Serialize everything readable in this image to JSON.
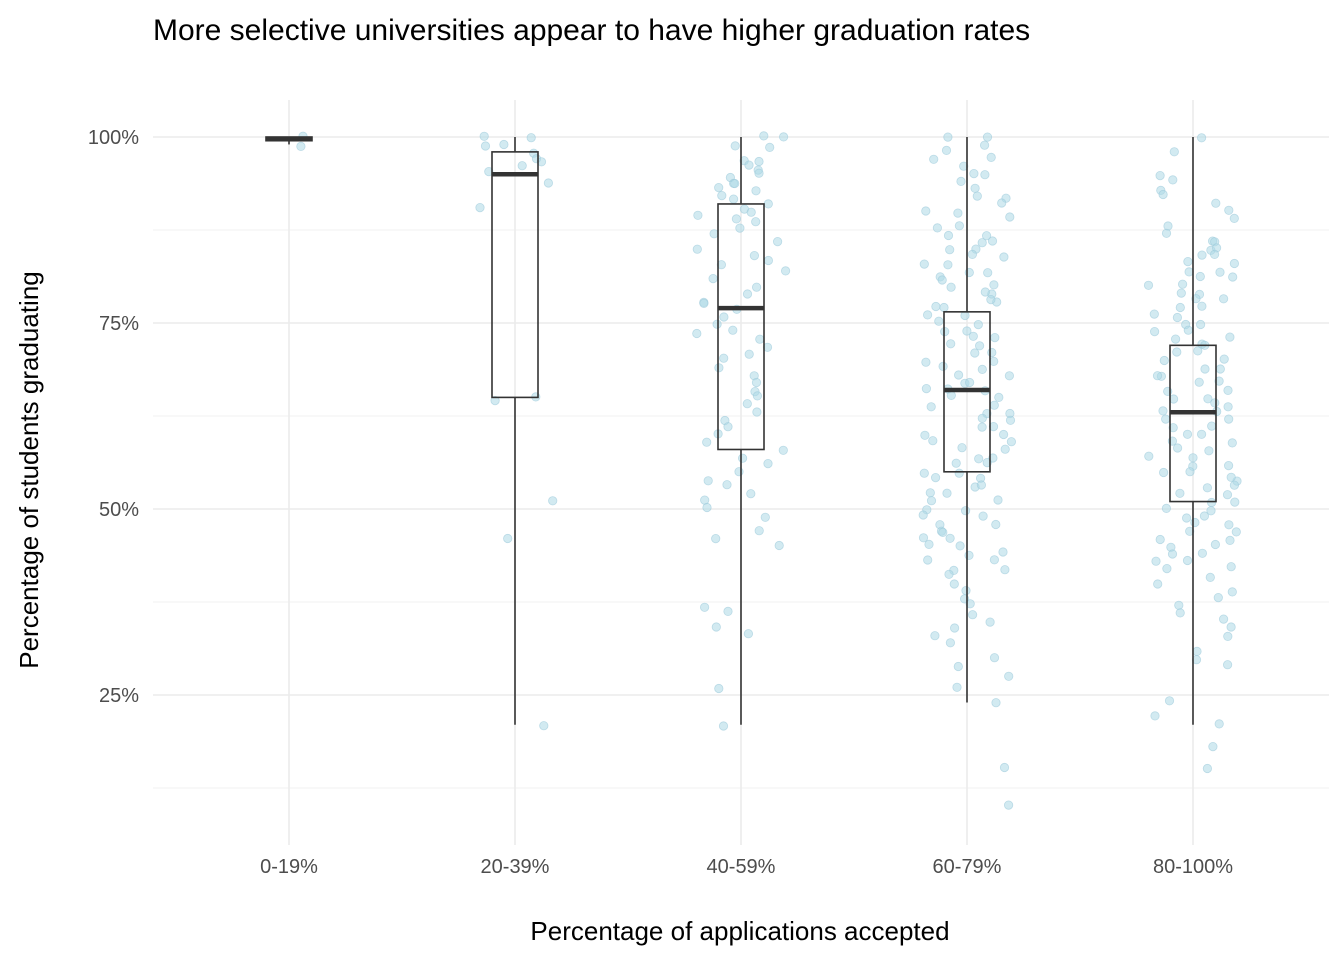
{
  "chart_data": {
    "type": "box",
    "title": "More selective universities appear to have higher graduation rates",
    "xlabel": "Percentage of applications accepted",
    "ylabel": "Percentage of students graduating",
    "categories": [
      "0-19%",
      "20-39%",
      "40-59%",
      "60-79%",
      "80-100%"
    ],
    "ylim": [
      0.08,
      1.05
    ],
    "yticks": [
      0.25,
      0.5,
      0.75,
      1.0
    ],
    "ytick_labels": [
      "25%",
      "50%",
      "75%",
      "100%"
    ],
    "grid": true,
    "point_color": "#add8e6",
    "box_color": "#333333",
    "boxes": [
      {
        "category": "0-19%",
        "min": 0.99,
        "q1": 0.995,
        "median": 0.997,
        "q3": 1.0,
        "max": 1.0
      },
      {
        "category": "20-39%",
        "min": 0.21,
        "q1": 0.65,
        "median": 0.95,
        "q3": 0.98,
        "max": 1.0
      },
      {
        "category": "40-59%",
        "min": 0.21,
        "q1": 0.58,
        "median": 0.77,
        "q3": 0.91,
        "max": 1.0
      },
      {
        "category": "60-79%",
        "min": 0.24,
        "q1": 0.55,
        "median": 0.66,
        "q3": 0.765,
        "max": 1.0
      },
      {
        "category": "80-100%",
        "min": 0.21,
        "q1": 0.51,
        "median": 0.63,
        "q3": 0.72,
        "max": 1.0
      }
    ],
    "points": [
      {
        "category": "0-19%",
        "values": [
          1.0,
          0.99
        ]
      },
      {
        "category": "20-39%",
        "values": [
          1.0,
          0.99,
          0.98,
          0.97,
          0.965,
          0.96,
          0.955,
          0.94,
          0.905,
          0.65,
          0.645,
          0.513,
          0.46,
          0.207,
          1.0,
          0.99
        ]
      },
      {
        "category": "40-59%",
        "values": [
          1.0,
          1.0,
          0.99,
          0.985,
          0.97,
          0.965,
          0.96,
          0.955,
          0.95,
          0.945,
          0.94,
          0.935,
          0.93,
          0.925,
          0.92,
          0.915,
          0.91,
          0.905,
          0.9,
          0.895,
          0.89,
          0.885,
          0.88,
          0.87,
          0.86,
          0.85,
          0.84,
          0.835,
          0.83,
          0.82,
          0.81,
          0.8,
          0.79,
          0.78,
          0.775,
          0.77,
          0.76,
          0.75,
          0.74,
          0.735,
          0.73,
          0.72,
          0.71,
          0.7,
          0.69,
          0.68,
          0.67,
          0.66,
          0.65,
          0.64,
          0.63,
          0.62,
          0.61,
          0.6,
          0.59,
          0.58,
          0.57,
          0.56,
          0.55,
          0.54,
          0.53,
          0.52,
          0.51,
          0.5,
          0.49,
          0.47,
          0.46,
          0.45,
          0.37,
          0.365,
          0.34,
          0.335,
          0.26,
          0.21
        ]
      },
      {
        "category": "60-79%",
        "values": [
          1.0,
          1.0,
          0.99,
          0.98,
          0.97,
          0.97,
          0.96,
          0.95,
          0.95,
          0.94,
          0.93,
          0.92,
          0.92,
          0.91,
          0.9,
          0.9,
          0.89,
          0.88,
          0.88,
          0.87,
          0.87,
          0.86,
          0.86,
          0.85,
          0.85,
          0.84,
          0.84,
          0.83,
          0.83,
          0.82,
          0.82,
          0.81,
          0.81,
          0.8,
          0.8,
          0.79,
          0.79,
          0.78,
          0.78,
          0.77,
          0.77,
          0.76,
          0.76,
          0.75,
          0.75,
          0.74,
          0.74,
          0.73,
          0.73,
          0.72,
          0.72,
          0.71,
          0.71,
          0.7,
          0.7,
          0.69,
          0.69,
          0.68,
          0.68,
          0.67,
          0.67,
          0.66,
          0.66,
          0.66,
          0.65,
          0.65,
          0.64,
          0.64,
          0.63,
          0.63,
          0.62,
          0.62,
          0.61,
          0.61,
          0.6,
          0.6,
          0.59,
          0.59,
          0.58,
          0.58,
          0.57,
          0.57,
          0.56,
          0.56,
          0.55,
          0.55,
          0.54,
          0.54,
          0.53,
          0.53,
          0.52,
          0.52,
          0.51,
          0.51,
          0.5,
          0.5,
          0.49,
          0.49,
          0.48,
          0.48,
          0.47,
          0.47,
          0.46,
          0.46,
          0.45,
          0.45,
          0.44,
          0.44,
          0.43,
          0.43,
          0.42,
          0.42,
          0.41,
          0.4,
          0.39,
          0.38,
          0.37,
          0.36,
          0.35,
          0.34,
          0.33,
          0.32,
          0.3,
          0.29,
          0.275,
          0.26,
          0.24,
          0.155,
          0.1
        ]
      },
      {
        "category": "80-100%",
        "values": [
          1.0,
          0.98,
          0.95,
          0.94,
          0.93,
          0.92,
          0.91,
          0.9,
          0.89,
          0.88,
          0.87,
          0.86,
          0.86,
          0.85,
          0.85,
          0.84,
          0.84,
          0.83,
          0.83,
          0.82,
          0.82,
          0.81,
          0.81,
          0.8,
          0.8,
          0.79,
          0.79,
          0.78,
          0.78,
          0.77,
          0.77,
          0.76,
          0.76,
          0.75,
          0.75,
          0.74,
          0.74,
          0.73,
          0.73,
          0.72,
          0.72,
          0.71,
          0.71,
          0.7,
          0.7,
          0.69,
          0.69,
          0.68,
          0.68,
          0.67,
          0.67,
          0.66,
          0.66,
          0.65,
          0.65,
          0.64,
          0.64,
          0.63,
          0.63,
          0.62,
          0.62,
          0.61,
          0.61,
          0.6,
          0.6,
          0.59,
          0.59,
          0.58,
          0.58,
          0.57,
          0.57,
          0.56,
          0.56,
          0.55,
          0.55,
          0.54,
          0.54,
          0.53,
          0.53,
          0.52,
          0.52,
          0.51,
          0.51,
          0.5,
          0.5,
          0.49,
          0.49,
          0.48,
          0.48,
          0.47,
          0.47,
          0.46,
          0.46,
          0.45,
          0.45,
          0.44,
          0.44,
          0.43,
          0.43,
          0.42,
          0.42,
          0.41,
          0.4,
          0.39,
          0.38,
          0.37,
          0.36,
          0.35,
          0.34,
          0.33,
          0.31,
          0.3,
          0.29,
          0.24,
          0.22,
          0.21,
          0.18,
          0.15
        ]
      }
    ]
  }
}
